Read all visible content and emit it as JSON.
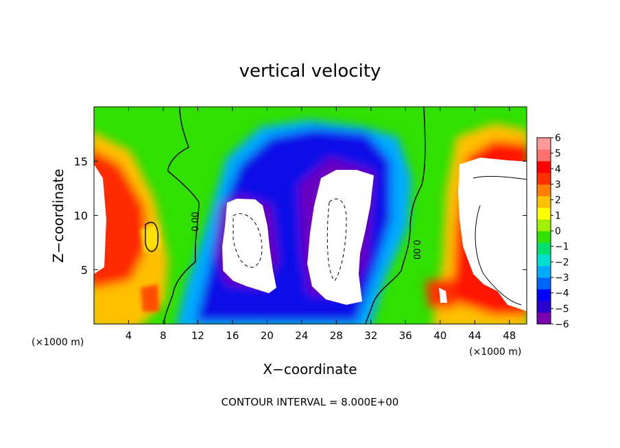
{
  "chart_data": {
    "type": "heatmap",
    "title": "vertical velocity",
    "xlabel": "X−coordinate",
    "ylabel": "Z−coordinate",
    "x_unit": "(×1000 m)",
    "x_unit_right": "(×1000 m)",
    "footer": "CONTOUR INTERVAL = 8.000E+00",
    "xlim": [
      0,
      50
    ],
    "ylim": [
      0,
      20
    ],
    "xticks": [
      4,
      8,
      12,
      16,
      20,
      24,
      28,
      32,
      36,
      40,
      44,
      48
    ],
    "xtick_labels": [
      "4",
      "8",
      "12",
      "16",
      "20",
      "24",
      "28",
      "32",
      "36",
      "40",
      "44",
      "48"
    ],
    "yticks": [
      5,
      10,
      15
    ],
    "ytick_labels": [
      "5",
      "10",
      "15"
    ],
    "colorbar": {
      "range": [
        -6,
        6
      ],
      "ticks": [
        6,
        5,
        4,
        3,
        2,
        1,
        0,
        -1,
        -2,
        -3,
        -4,
        -5,
        -6
      ],
      "tick_labels": [
        "6",
        "5",
        "4",
        "3",
        "2",
        "1",
        "0",
        "−1",
        "−2",
        "−3",
        "−4",
        "−5",
        "−6"
      ],
      "colors": [
        "#7a00b0",
        "#2a00d0",
        "#0000ff",
        "#0066ff",
        "#00aaff",
        "#00e0d0",
        "#00e070",
        "#30e000",
        "#a0f000",
        "#ffff00",
        "#ffc000",
        "#ff8000",
        "#ff3000",
        "#ff0000",
        "#ff7070",
        "#ff9a9a"
      ]
    },
    "contour_labels": [
      "0.00",
      "0.00"
    ],
    "features": [
      {
        "kind": "updraft",
        "x": 1,
        "z": 10,
        "value": 5
      },
      {
        "kind": "downdraft",
        "x": 19,
        "z": 10,
        "value": -6
      },
      {
        "kind": "downdraft",
        "x": 27,
        "z": 10,
        "value": -6
      },
      {
        "kind": "updraft",
        "x": 46,
        "z": 12,
        "value": 6
      }
    ]
  }
}
